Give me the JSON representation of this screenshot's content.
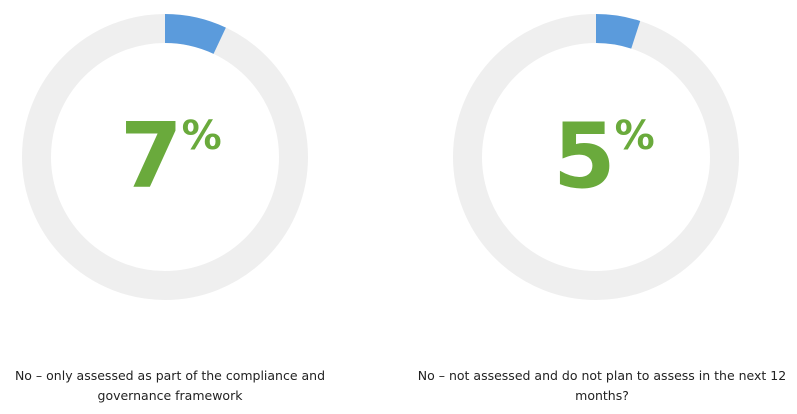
{
  "colors": {
    "track": "#efefef",
    "fill": "#5b9bdc",
    "value_text": "#6aaa3c",
    "caption_text": "#222222"
  },
  "chart_data": [
    {
      "type": "pie",
      "value": 7,
      "value_label": "7",
      "unit": "%",
      "label": "No – only assessed as part of the compliance and governance framework"
    },
    {
      "type": "pie",
      "value": 5,
      "value_label": "5",
      "unit": "%",
      "label": "No – not assessed and do not plan to assess in the next 12 months?"
    }
  ]
}
